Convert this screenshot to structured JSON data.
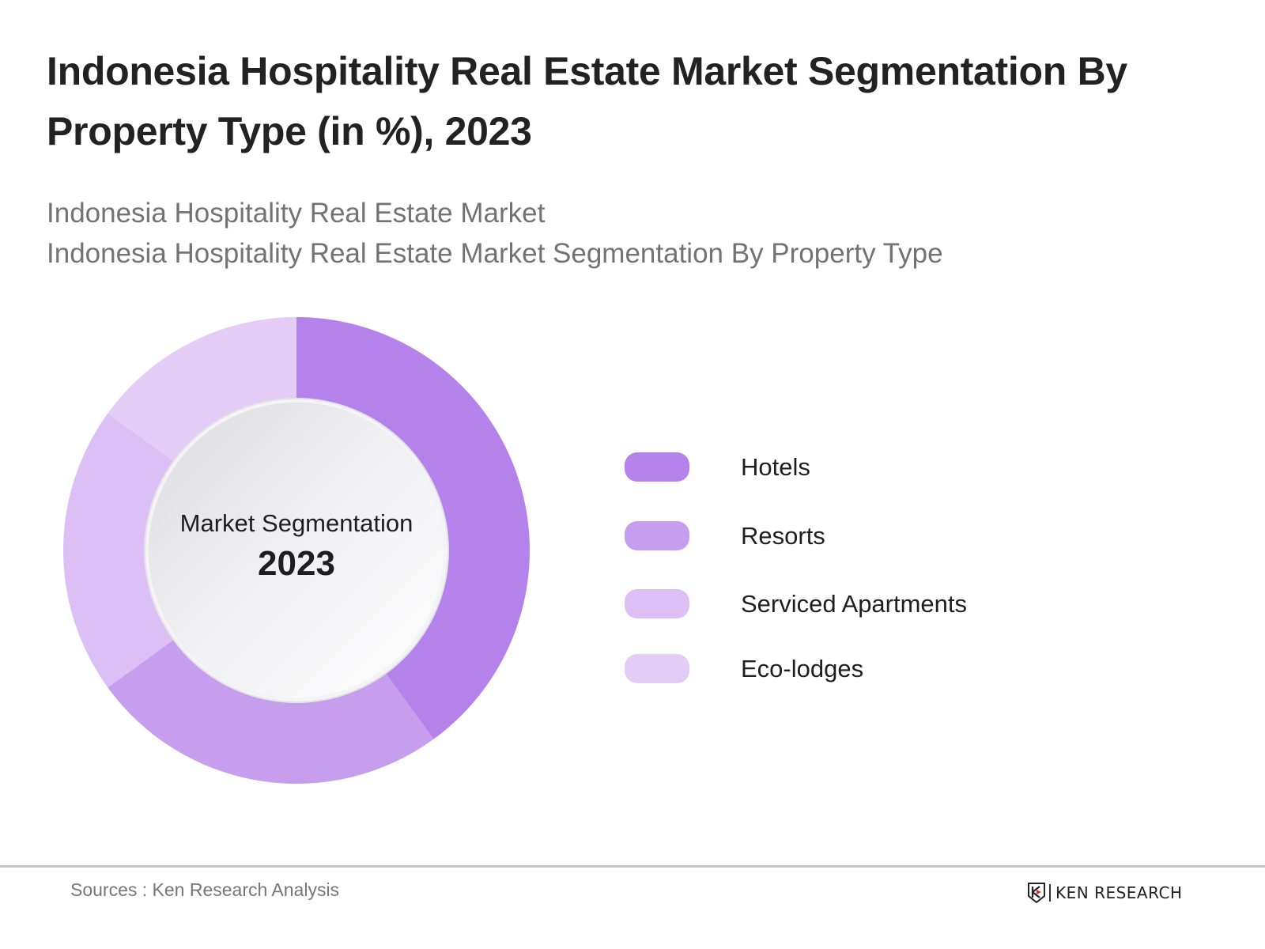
{
  "header": {
    "title_line1": "Indonesia Hospitality Real Estate Market Segmentation By",
    "title_line2": "Property Type (in %), 2023",
    "subtitle_line1": "Indonesia Hospitality Real Estate Market",
    "subtitle_line2": "Indonesia Hospitality Real Estate Market Segmentation By Property Type"
  },
  "donut_center": {
    "label": "Market Segmentation",
    "year": "2023"
  },
  "legend": [
    {
      "label": "Hotels",
      "color": "#b482ea"
    },
    {
      "label": "Resorts",
      "color": "#c79ded"
    },
    {
      "label": "Serviced Apartments",
      "color": "#dcc0f5"
    },
    {
      "label": "Eco-lodges",
      "color": "#e3cdf7"
    }
  ],
  "footer": {
    "source": "Sources : Ken Research Analysis",
    "logo_text": "KEN RESEARCH"
  },
  "colors": {
    "accent_red": "#d42a2a"
  },
  "chart_data": {
    "type": "pie",
    "variant": "donut",
    "title": "Indonesia Hospitality Real Estate Market Segmentation By Property Type (in %), 2023",
    "subtitle": "Indonesia Hospitality Real Estate Market / Indonesia Hospitality Real Estate Market Segmentation By Property Type",
    "center_text": [
      "Market Segmentation",
      "2023"
    ],
    "categories": [
      "Hotels",
      "Resorts",
      "Serviced Apartments",
      "Eco-lodges"
    ],
    "values": [
      40,
      25,
      20,
      15
    ],
    "unit": "%",
    "colors": [
      "#b482ea",
      "#c79ded",
      "#dcc0f5",
      "#e3cdf7"
    ],
    "start_angle_deg": 0,
    "direction": "clockwise",
    "legend_position": "right",
    "data_labels": false,
    "source": "Sources : Ken Research Analysis"
  }
}
